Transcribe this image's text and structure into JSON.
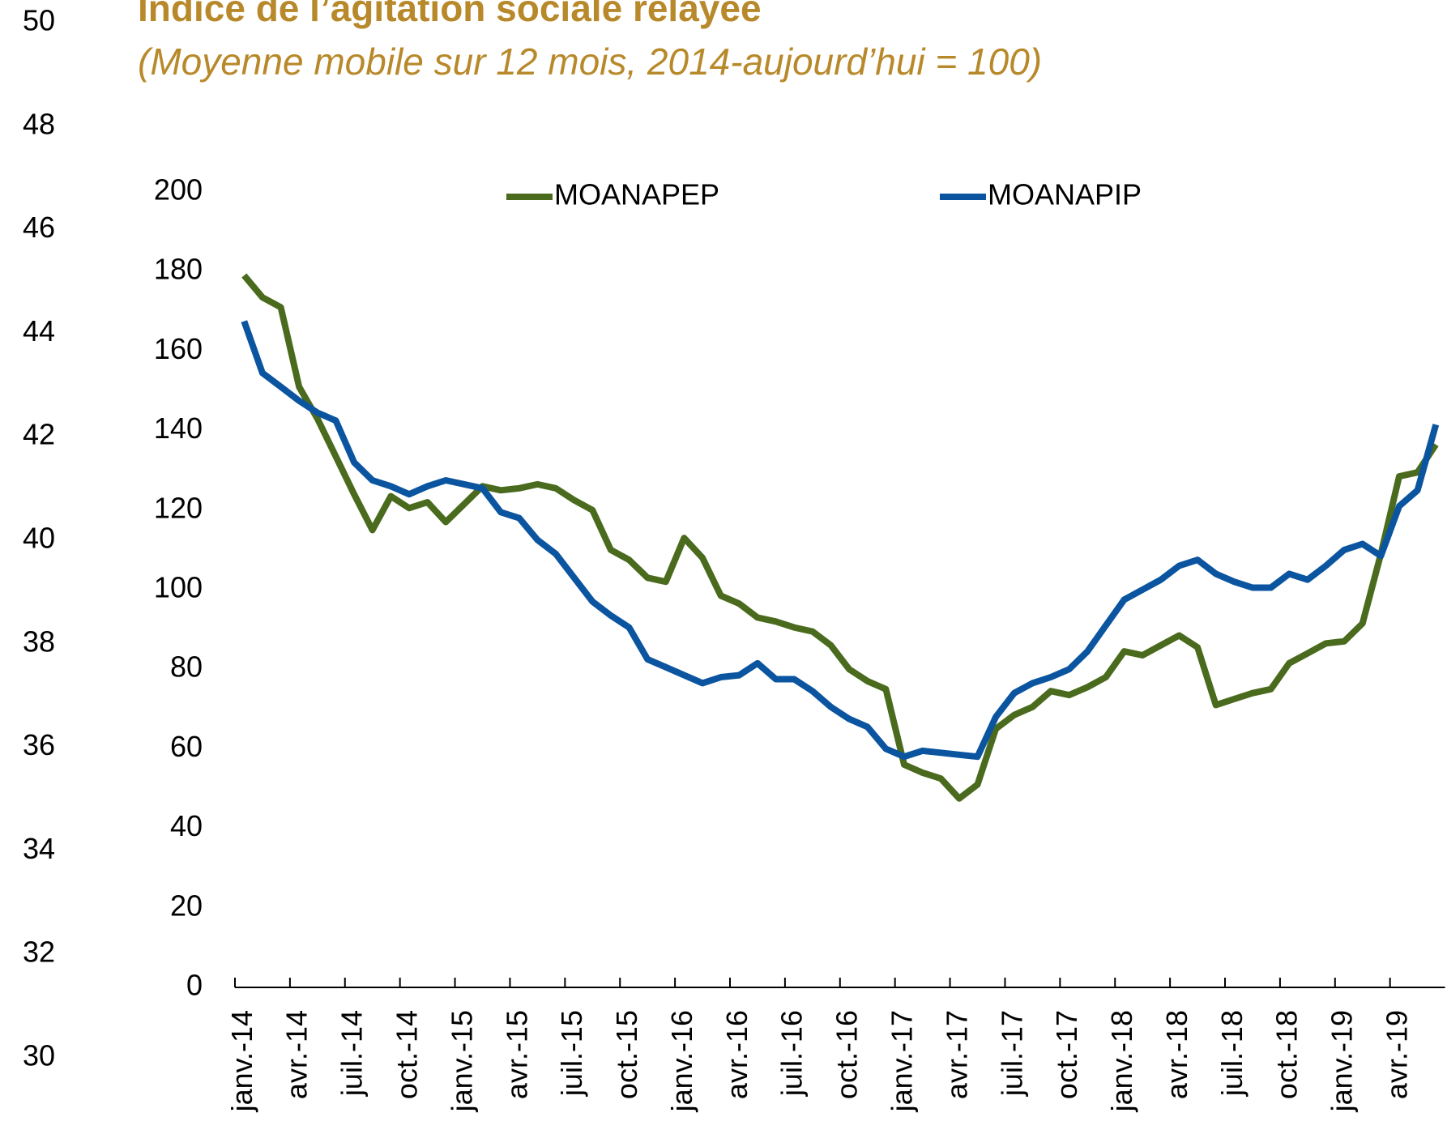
{
  "chart_data": {
    "type": "line",
    "title": "Indice de l’agitation sociale relayée",
    "subtitle": "(Moyenne mobile sur 12 mois, 2014-aujourd’hui = 100)",
    "categories": [
      "janv.-14",
      null,
      null,
      "avr.-14",
      null,
      null,
      "juil.-14",
      null,
      null,
      "oct.-14",
      null,
      null,
      "janv.-15",
      null,
      null,
      "avr.-15",
      null,
      null,
      "juil.-15",
      null,
      null,
      "oct.-15",
      null,
      null,
      "janv.-16",
      null,
      null,
      "avr.-16",
      null,
      null,
      "juil.-16",
      null,
      null,
      "oct.-16",
      null,
      null,
      "janv.-17",
      null,
      null,
      "avr.-17",
      null,
      null,
      "juil.-17",
      null,
      null,
      "oct.-17",
      null,
      null,
      "janv.-18",
      null,
      null,
      "avr.-18",
      null,
      null,
      "juil.-18",
      null,
      null,
      "oct.-18",
      null,
      null,
      "janv.-19",
      null,
      null,
      "avr.-19",
      null,
      null
    ],
    "series": [
      {
        "name": "MOANAPEP",
        "color": "#4a6b1d",
        "values": [
          179,
          173.5,
          171,
          151,
          143,
          133.5,
          124,
          115,
          123.5,
          120.5,
          122,
          117,
          121.5,
          126,
          125,
          125.5,
          126.5,
          125.5,
          122.5,
          120,
          110,
          107.5,
          103,
          102,
          113,
          108,
          98.5,
          96.5,
          93,
          92,
          90.5,
          89.5,
          86,
          80,
          77,
          75,
          56,
          54,
          52.5,
          47.5,
          51,
          65,
          68.5,
          70.5,
          74.5,
          73.5,
          75.5,
          78,
          84.5,
          83.5,
          86,
          88.5,
          85.5,
          71,
          72.5,
          74,
          75,
          81.5,
          84,
          86.5,
          87,
          91.5,
          109,
          128.5,
          129.5,
          136.5
        ]
      },
      {
        "name": "MOANAPIP",
        "color": "#0b55a0",
        "values": [
          167.5,
          154.5,
          151,
          147.5,
          144.5,
          142.5,
          132,
          127.5,
          126,
          124,
          126,
          127.5,
          126.5,
          125.5,
          119.5,
          118,
          112.5,
          109,
          103,
          97,
          93.5,
          90.5,
          82.5,
          80.5,
          78.5,
          76.5,
          78,
          78.5,
          81.5,
          77.5,
          77.5,
          74.5,
          70.5,
          67.5,
          65.5,
          60,
          58,
          59.5,
          59,
          58.5,
          58,
          68,
          74,
          76.5,
          78,
          80,
          84.5,
          91,
          97.5,
          100,
          102.5,
          106,
          107.5,
          104,
          102,
          100.5,
          100.5,
          104,
          102.5,
          106,
          110,
          111.5,
          108.5,
          121,
          125,
          141.5
        ]
      }
    ],
    "ylim": [
      0,
      200
    ],
    "yticks": [
      0,
      20,
      40,
      60,
      80,
      100,
      120,
      140,
      160,
      180,
      200
    ],
    "y2lim": [
      30,
      50
    ],
    "y2ticks": [
      30,
      32,
      34,
      36,
      38,
      40,
      42,
      44,
      46,
      48,
      50
    ],
    "grid": false
  }
}
